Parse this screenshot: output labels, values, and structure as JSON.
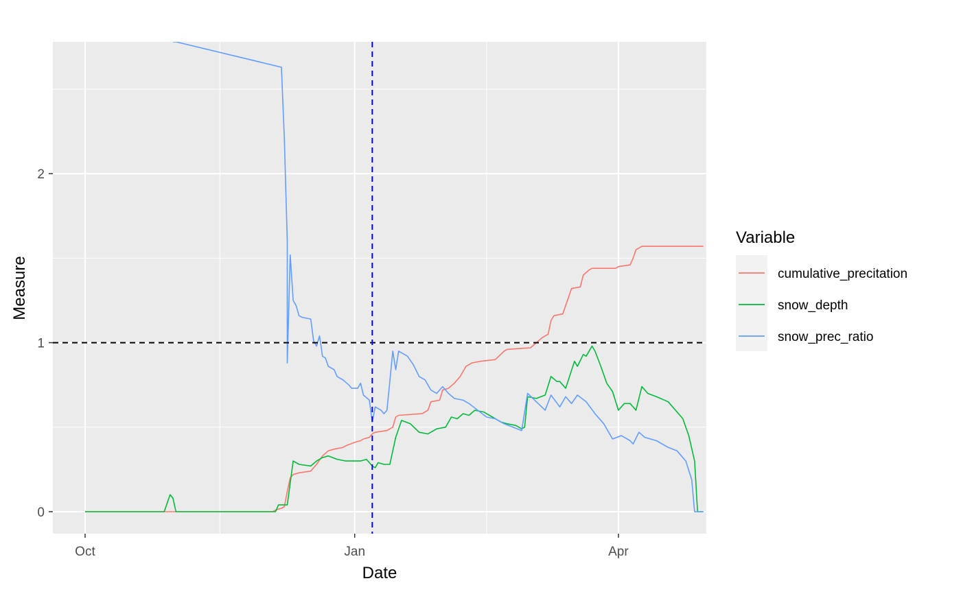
{
  "chart_data": {
    "type": "line",
    "title": "",
    "xlabel": "Date",
    "ylabel": "Measure",
    "x_range": [
      "2018-09-20",
      "2019-05-01"
    ],
    "ylim": [
      -0.13,
      2.78
    ],
    "x_ticks": [
      {
        "date": "2018-10-01",
        "label": "Oct"
      },
      {
        "date": "2019-01-01",
        "label": "Jan"
      },
      {
        "date": "2019-04-01",
        "label": "Apr"
      }
    ],
    "y_ticks": [
      {
        "value": 0,
        "label": "0"
      },
      {
        "value": 1,
        "label": "1"
      },
      {
        "value": 2,
        "label": "2"
      }
    ],
    "grid": true,
    "hline": {
      "value": 1,
      "color": "#000000",
      "style": "dashed"
    },
    "vline": {
      "date": "2019-01-07",
      "color": "#0000ff",
      "style": "dashed"
    },
    "legend": {
      "title": "Variable",
      "position": "right"
    },
    "series": [
      {
        "name": "cumulative_precitation",
        "color": "#F8766D",
        "points": [
          [
            "2018-10-01",
            0
          ],
          [
            "2018-12-04",
            0
          ],
          [
            "2018-12-05",
            0.01
          ],
          [
            "2018-12-07",
            0.02
          ],
          [
            "2018-12-08",
            0.03
          ],
          [
            "2018-12-09",
            0.12
          ],
          [
            "2018-12-10",
            0.2
          ],
          [
            "2018-12-11",
            0.22
          ],
          [
            "2018-12-13",
            0.23
          ],
          [
            "2018-12-17",
            0.24
          ],
          [
            "2018-12-19",
            0.28
          ],
          [
            "2018-12-21",
            0.33
          ],
          [
            "2018-12-23",
            0.36
          ],
          [
            "2018-12-25",
            0.37
          ],
          [
            "2018-12-28",
            0.38
          ],
          [
            "2018-12-29",
            0.39
          ],
          [
            "2019-01-01",
            0.41
          ],
          [
            "2019-01-03",
            0.42
          ],
          [
            "2019-01-04",
            0.43
          ],
          [
            "2019-01-06",
            0.44
          ],
          [
            "2019-01-07",
            0.46
          ],
          [
            "2019-01-08",
            0.47
          ],
          [
            "2019-01-12",
            0.48
          ],
          [
            "2019-01-14",
            0.5
          ],
          [
            "2019-01-15",
            0.56
          ],
          [
            "2019-01-16",
            0.57
          ],
          [
            "2019-01-24",
            0.58
          ],
          [
            "2019-01-26",
            0.6
          ],
          [
            "2019-01-27",
            0.65
          ],
          [
            "2019-01-30",
            0.66
          ],
          [
            "2019-01-31",
            0.72
          ],
          [
            "2019-02-02",
            0.73
          ],
          [
            "2019-02-04",
            0.76
          ],
          [
            "2019-02-06",
            0.8
          ],
          [
            "2019-02-08",
            0.86
          ],
          [
            "2019-02-10",
            0.88
          ],
          [
            "2019-02-13",
            0.89
          ],
          [
            "2019-02-18",
            0.9
          ],
          [
            "2019-02-21",
            0.95
          ],
          [
            "2019-02-22",
            0.96
          ],
          [
            "2019-03-02",
            0.97
          ],
          [
            "2019-03-04",
            1.0
          ],
          [
            "2019-03-06",
            1.03
          ],
          [
            "2019-03-08",
            1.05
          ],
          [
            "2019-03-09",
            1.13
          ],
          [
            "2019-03-10",
            1.16
          ],
          [
            "2019-03-13",
            1.17
          ],
          [
            "2019-03-15",
            1.27
          ],
          [
            "2019-03-16",
            1.32
          ],
          [
            "2019-03-19",
            1.33
          ],
          [
            "2019-03-20",
            1.4
          ],
          [
            "2019-03-22",
            1.43
          ],
          [
            "2019-03-23",
            1.44
          ],
          [
            "2019-03-31",
            1.44
          ],
          [
            "2019-04-01",
            1.45
          ],
          [
            "2019-04-05",
            1.46
          ],
          [
            "2019-04-06",
            1.5
          ],
          [
            "2019-04-07",
            1.55
          ],
          [
            "2019-04-09",
            1.57
          ],
          [
            "2019-04-30",
            1.57
          ]
        ]
      },
      {
        "name": "snow_depth",
        "color": "#00BA38",
        "points": [
          [
            "2018-10-01",
            0
          ],
          [
            "2018-10-28",
            0
          ],
          [
            "2018-10-30",
            0.1
          ],
          [
            "2018-10-31",
            0.08
          ],
          [
            "2018-11-01",
            0
          ],
          [
            "2018-12-05",
            0
          ],
          [
            "2018-12-06",
            0.04
          ],
          [
            "2018-12-09",
            0.04
          ],
          [
            "2018-12-11",
            0.3
          ],
          [
            "2018-12-13",
            0.28
          ],
          [
            "2018-12-17",
            0.27
          ],
          [
            "2018-12-19",
            0.3
          ],
          [
            "2018-12-21",
            0.32
          ],
          [
            "2018-12-23",
            0.33
          ],
          [
            "2018-12-26",
            0.31
          ],
          [
            "2018-12-29",
            0.3
          ],
          [
            "2019-01-03",
            0.3
          ],
          [
            "2019-01-05",
            0.31
          ],
          [
            "2019-01-07",
            0.27
          ],
          [
            "2019-01-08",
            0.26
          ],
          [
            "2019-01-09",
            0.29
          ],
          [
            "2019-01-11",
            0.28
          ],
          [
            "2019-01-13",
            0.28
          ],
          [
            "2019-01-15",
            0.44
          ],
          [
            "2019-01-17",
            0.54
          ],
          [
            "2019-01-20",
            0.52
          ],
          [
            "2019-01-23",
            0.47
          ],
          [
            "2019-01-26",
            0.46
          ],
          [
            "2019-01-29",
            0.49
          ],
          [
            "2019-02-01",
            0.5
          ],
          [
            "2019-02-03",
            0.56
          ],
          [
            "2019-02-05",
            0.55
          ],
          [
            "2019-02-07",
            0.58
          ],
          [
            "2019-02-09",
            0.57
          ],
          [
            "2019-02-11",
            0.6
          ],
          [
            "2019-02-14",
            0.59
          ],
          [
            "2019-02-17",
            0.56
          ],
          [
            "2019-02-20",
            0.53
          ],
          [
            "2019-02-22",
            0.52
          ],
          [
            "2019-02-25",
            0.51
          ],
          [
            "2019-02-27",
            0.49
          ],
          [
            "2019-02-28",
            0.5
          ],
          [
            "2019-03-01",
            0.68
          ],
          [
            "2019-03-04",
            0.67
          ],
          [
            "2019-03-07",
            0.69
          ],
          [
            "2019-03-09",
            0.8
          ],
          [
            "2019-03-11",
            0.77
          ],
          [
            "2019-03-12",
            0.77
          ],
          [
            "2019-03-14",
            0.73
          ],
          [
            "2019-03-17",
            0.89
          ],
          [
            "2019-03-18",
            0.86
          ],
          [
            "2019-03-20",
            0.93
          ],
          [
            "2019-03-21",
            0.92
          ],
          [
            "2019-03-23",
            0.98
          ],
          [
            "2019-03-24",
            0.95
          ],
          [
            "2019-03-26",
            0.86
          ],
          [
            "2019-03-28",
            0.76
          ],
          [
            "2019-03-30",
            0.71
          ],
          [
            "2019-04-01",
            0.6
          ],
          [
            "2019-04-03",
            0.64
          ],
          [
            "2019-04-05",
            0.64
          ],
          [
            "2019-04-07",
            0.6
          ],
          [
            "2019-04-09",
            0.74
          ],
          [
            "2019-04-11",
            0.7
          ],
          [
            "2019-04-14",
            0.68
          ],
          [
            "2019-04-18",
            0.65
          ],
          [
            "2019-04-21",
            0.59
          ],
          [
            "2019-04-23",
            0.55
          ],
          [
            "2019-04-25",
            0.45
          ],
          [
            "2019-04-27",
            0.3
          ],
          [
            "2019-04-28",
            0
          ],
          [
            "2019-04-30",
            0
          ]
        ]
      },
      {
        "name": "snow_prec_ratio",
        "color": "#619CFF",
        "points": [
          [
            "2018-10-31",
            2.78
          ],
          [
            "2018-11-01",
            2.78
          ],
          [
            "2018-12-07",
            2.63
          ],
          [
            "2018-12-08",
            2.2
          ],
          [
            "2018-12-09",
            1.6
          ],
          [
            "2018-12-09",
            0.88
          ],
          [
            "2018-12-10",
            1.52
          ],
          [
            "2018-12-11",
            1.25
          ],
          [
            "2018-12-12",
            1.22
          ],
          [
            "2018-12-13",
            1.16
          ],
          [
            "2018-12-14",
            1.15
          ],
          [
            "2018-12-17",
            1.14
          ],
          [
            "2018-12-18",
            1.01
          ],
          [
            "2018-12-19",
            0.98
          ],
          [
            "2018-12-20",
            1.04
          ],
          [
            "2018-12-21",
            0.92
          ],
          [
            "2018-12-22",
            0.91
          ],
          [
            "2018-12-23",
            0.86
          ],
          [
            "2018-12-25",
            0.84
          ],
          [
            "2018-12-26",
            0.8
          ],
          [
            "2018-12-28",
            0.78
          ],
          [
            "2018-12-30",
            0.75
          ],
          [
            "2018-12-31",
            0.73
          ],
          [
            "2019-01-02",
            0.73
          ],
          [
            "2019-01-03",
            0.76
          ],
          [
            "2019-01-04",
            0.69
          ],
          [
            "2019-01-06",
            0.66
          ],
          [
            "2019-01-07",
            0.53
          ],
          [
            "2019-01-08",
            0.62
          ],
          [
            "2019-01-10",
            0.6
          ],
          [
            "2019-01-11",
            0.58
          ],
          [
            "2019-01-12",
            0.6
          ],
          [
            "2019-01-13",
            0.77
          ],
          [
            "2019-01-14",
            0.95
          ],
          [
            "2019-01-15",
            0.84
          ],
          [
            "2019-01-16",
            0.95
          ],
          [
            "2019-01-19",
            0.92
          ],
          [
            "2019-01-21",
            0.87
          ],
          [
            "2019-01-23",
            0.8
          ],
          [
            "2019-01-25",
            0.78
          ],
          [
            "2019-01-27",
            0.72
          ],
          [
            "2019-01-29",
            0.7
          ],
          [
            "2019-01-31",
            0.74
          ],
          [
            "2019-02-02",
            0.7
          ],
          [
            "2019-02-04",
            0.67
          ],
          [
            "2019-02-07",
            0.66
          ],
          [
            "2019-02-09",
            0.64
          ],
          [
            "2019-02-12",
            0.6
          ],
          [
            "2019-02-15",
            0.56
          ],
          [
            "2019-02-18",
            0.55
          ],
          [
            "2019-02-21",
            0.52
          ],
          [
            "2019-02-24",
            0.5
          ],
          [
            "2019-02-27",
            0.48
          ],
          [
            "2019-03-01",
            0.7
          ],
          [
            "2019-03-04",
            0.65
          ],
          [
            "2019-03-07",
            0.6
          ],
          [
            "2019-03-09",
            0.69
          ],
          [
            "2019-03-12",
            0.62
          ],
          [
            "2019-03-14",
            0.68
          ],
          [
            "2019-03-16",
            0.64
          ],
          [
            "2019-03-18",
            0.69
          ],
          [
            "2019-03-21",
            0.65
          ],
          [
            "2019-03-24",
            0.58
          ],
          [
            "2019-03-27",
            0.52
          ],
          [
            "2019-03-30",
            0.43
          ],
          [
            "2019-04-02",
            0.45
          ],
          [
            "2019-04-05",
            0.42
          ],
          [
            "2019-04-06",
            0.4
          ],
          [
            "2019-04-08",
            0.47
          ],
          [
            "2019-04-10",
            0.44
          ],
          [
            "2019-04-14",
            0.42
          ],
          [
            "2019-04-18",
            0.38
          ],
          [
            "2019-04-21",
            0.36
          ],
          [
            "2019-04-24",
            0.3
          ],
          [
            "2019-04-26",
            0.19
          ],
          [
            "2019-04-27",
            0
          ],
          [
            "2019-04-30",
            0
          ]
        ]
      }
    ]
  }
}
